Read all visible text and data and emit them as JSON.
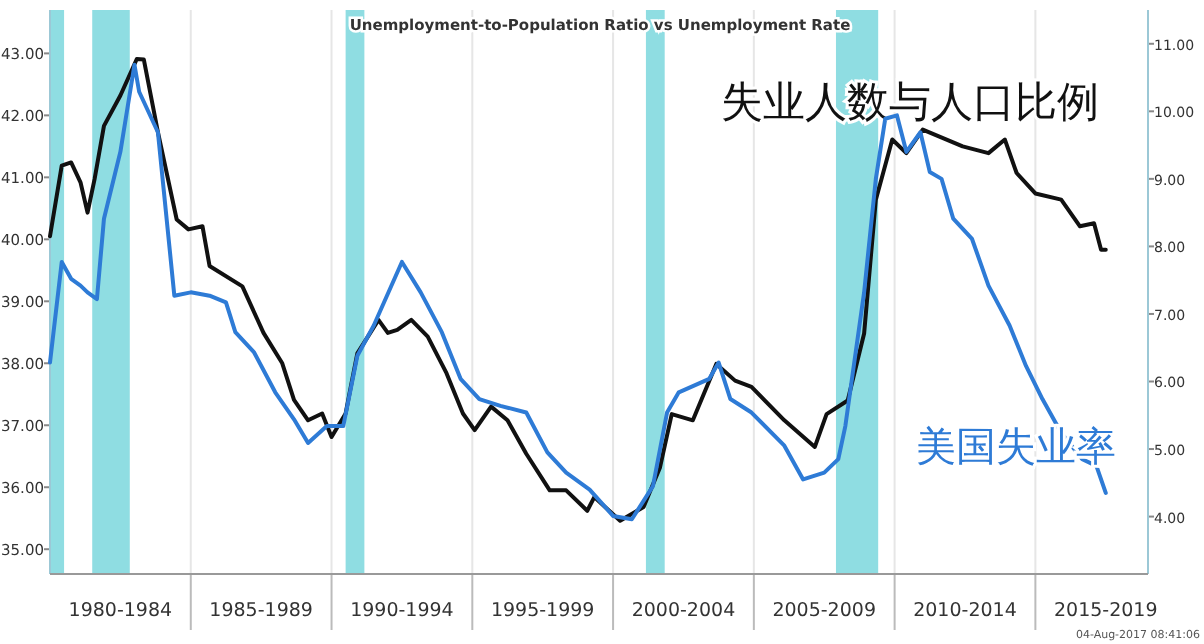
{
  "chart_data": {
    "type": "line",
    "title": "Unemployment-to-Population Ratio vs Unemployment Rate",
    "xlim": [
      "1980-01",
      "2019-01"
    ],
    "xticks": [
      {
        "value": "1982-07",
        "label": "1980-1984"
      },
      {
        "value": "1985-01",
        "label": null
      },
      {
        "value": "1987-07",
        "label": "1985-1989"
      },
      {
        "value": "1990-01",
        "label": null
      },
      {
        "value": "1992-07",
        "label": "1990-1994"
      },
      {
        "value": "1995-01",
        "label": null
      },
      {
        "value": "1997-07",
        "label": "1995-1999"
      },
      {
        "value": "2000-01",
        "label": null
      },
      {
        "value": "2002-07",
        "label": "2000-2004"
      },
      {
        "value": "2005-01",
        "label": null
      },
      {
        "value": "2007-07",
        "label": "2005-2009"
      },
      {
        "value": "2010-01",
        "label": null
      },
      {
        "value": "2012-07",
        "label": "2010-2014"
      },
      {
        "value": "2015-01",
        "label": null
      },
      {
        "value": "2017-07",
        "label": "2015-2019"
      }
    ],
    "ylim": [
      34.6,
      43.7
    ],
    "yticks": [
      {
        "value": 35,
        "label": "35.00"
      },
      {
        "value": 36,
        "label": "36.00"
      },
      {
        "value": 37,
        "label": "37.00"
      },
      {
        "value": 38,
        "label": "38.00"
      },
      {
        "value": 39,
        "label": "39.00"
      },
      {
        "value": 40,
        "label": "40.00"
      },
      {
        "value": 41,
        "label": "41.00"
      },
      {
        "value": 42,
        "label": "42.00"
      },
      {
        "value": 43,
        "label": "43.00"
      }
    ],
    "y2lim": [
      3.15,
      11.5
    ],
    "y2ticks": [
      {
        "value": 4,
        "label": "4.00"
      },
      {
        "value": 5,
        "label": "5.00"
      },
      {
        "value": 6,
        "label": "6.00"
      },
      {
        "value": 7,
        "label": "7.00"
      },
      {
        "value": 8,
        "label": "8.00"
      },
      {
        "value": 9,
        "label": "9.00"
      },
      {
        "value": 10,
        "label": "10.00"
      },
      {
        "value": 11,
        "label": "11.00"
      }
    ],
    "grid": "x",
    "bands": [
      {
        "axis": "x",
        "from": "1980-01",
        "to": "1980-07",
        "color": "#8fdde2"
      },
      {
        "axis": "x",
        "from": "1981-07",
        "to": "1982-11",
        "color": "#8fdde2"
      },
      {
        "axis": "x",
        "from": "1990-07",
        "to": "1991-03",
        "color": "#8fdde2"
      },
      {
        "axis": "x",
        "from": "2001-03",
        "to": "2001-11",
        "color": "#8fdde2"
      },
      {
        "axis": "x",
        "from": "2007-12",
        "to": "2009-06",
        "color": "#8fdde2"
      }
    ],
    "series": [
      {
        "name": "失业人数与人口比例",
        "color": "#111111",
        "x": [
          "1980-01",
          "1980-06",
          "1980-10",
          "1981-02",
          "1981-05",
          "1981-08",
          "1981-12",
          "1982-07",
          "1983-02",
          "1983-05",
          "1983-11",
          "1984-07",
          "1984-12",
          "1985-06",
          "1985-09",
          "1986-11",
          "1987-08",
          "1988-04",
          "1988-09",
          "1989-03",
          "1989-09",
          "1990-01",
          "1990-07",
          "1990-12",
          "1991-09",
          "1992-01",
          "1992-05",
          "1992-11",
          "1993-06",
          "1994-02",
          "1994-09",
          "1995-02",
          "1995-09",
          "1996-04",
          "1996-12",
          "1997-10",
          "1998-05",
          "1999-02",
          "1999-05",
          "2000-04",
          "2001-02",
          "2001-09",
          "2002-02",
          "2002-11",
          "2003-09",
          "2004-05",
          "2004-12",
          "2006-02",
          "2007-03",
          "2007-08",
          "2008-05",
          "2008-12",
          "2009-05",
          "2009-12",
          "2010-06",
          "2011-01",
          "2012-06",
          "2013-05",
          "2013-12",
          "2014-05",
          "2015-01",
          "2015-12",
          "2016-08",
          "2017-02",
          "2017-05",
          "2017-07"
        ],
        "values": [
          40.05,
          41.19,
          41.24,
          40.92,
          40.43,
          40.97,
          41.83,
          42.32,
          42.91,
          42.9,
          41.73,
          40.32,
          40.16,
          40.21,
          39.57,
          39.24,
          38.49,
          38.0,
          37.41,
          37.08,
          37.19,
          36.81,
          37.19,
          38.16,
          38.7,
          38.49,
          38.54,
          38.7,
          38.43,
          37.84,
          37.19,
          36.92,
          37.3,
          37.08,
          36.54,
          35.95,
          35.95,
          35.62,
          35.84,
          35.46,
          35.68,
          36.32,
          37.18,
          37.08,
          37.99,
          37.72,
          37.62,
          37.08,
          36.65,
          37.18,
          37.4,
          38.48,
          40.64,
          41.61,
          41.39,
          41.77,
          41.5,
          41.39,
          41.61,
          41.07,
          40.74,
          40.64,
          40.21,
          40.26,
          39.83,
          39.83
        ]
      },
      {
        "name": "美国失业率",
        "color": "#2e7bd6",
        "axis": "y2",
        "x": [
          "1980-01",
          "1980-06",
          "1980-10",
          "1981-02",
          "1981-05",
          "1981-09",
          "1981-12",
          "1982-07",
          "1983-01",
          "1983-03",
          "1983-11",
          "1984-06",
          "1985-01",
          "1985-09",
          "1986-04",
          "1986-08",
          "1987-04",
          "1988-01",
          "1988-09",
          "1989-03",
          "1989-11",
          "1990-06",
          "1990-12",
          "1991-07",
          "1992-07",
          "1993-03",
          "1993-12",
          "1994-08",
          "1995-04",
          "1996-01",
          "1996-12",
          "1997-09",
          "1998-05",
          "1999-03",
          "2000-01",
          "2000-09",
          "2001-06",
          "2001-12",
          "2002-05",
          "2003-06",
          "2003-10",
          "2004-03",
          "2004-12",
          "2006-02",
          "2006-10",
          "2007-07",
          "2008-01",
          "2008-04",
          "2008-12",
          "2009-05",
          "2009-09",
          "2010-02",
          "2010-06",
          "2010-12",
          "2011-04",
          "2011-09",
          "2012-02",
          "2012-10",
          "2013-05",
          "2014-02",
          "2014-09",
          "2015-04",
          "2015-12",
          "2016-09",
          "2017-03",
          "2017-07"
        ],
        "values": [
          6.28,
          7.77,
          7.52,
          7.42,
          7.32,
          7.22,
          8.41,
          9.4,
          10.69,
          10.29,
          9.69,
          7.27,
          7.32,
          7.27,
          7.17,
          6.73,
          6.43,
          5.84,
          5.44,
          5.09,
          5.34,
          5.34,
          6.38,
          6.83,
          7.77,
          7.32,
          6.73,
          6.04,
          5.74,
          5.64,
          5.54,
          4.95,
          4.65,
          4.4,
          4.01,
          3.96,
          4.45,
          5.54,
          5.84,
          6.04,
          6.28,
          5.74,
          5.54,
          5.05,
          4.55,
          4.65,
          4.85,
          5.34,
          7.32,
          9.0,
          9.89,
          9.94,
          9.4,
          9.69,
          9.1,
          9.0,
          8.41,
          8.11,
          7.42,
          6.83,
          6.23,
          5.74,
          5.24,
          4.85,
          4.75,
          4.35
        ]
      }
    ],
    "annotations": [
      "04-Aug-2017 08:41:06"
    ]
  }
}
